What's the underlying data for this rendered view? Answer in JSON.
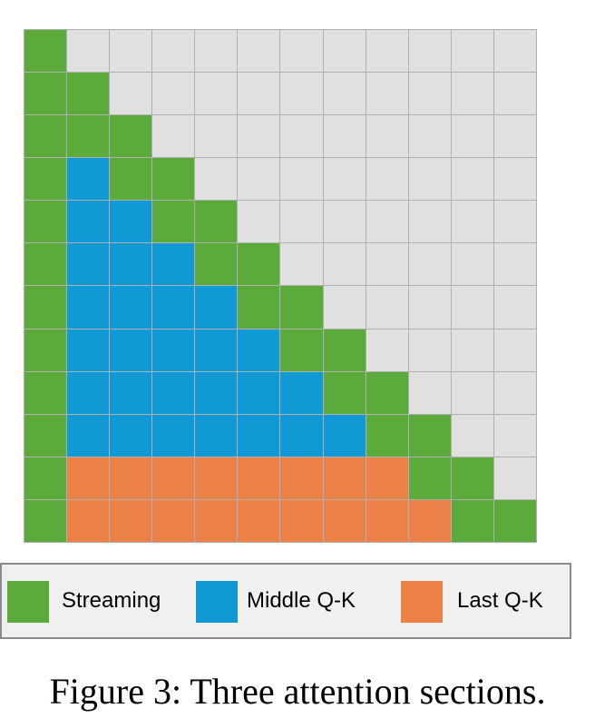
{
  "diagram": {
    "size": 12,
    "colors": {
      "streaming": "#5aaa3c",
      "middle": "#1199d6",
      "last": "#ec8148",
      "masked": "#e0e0e0"
    },
    "rows": [
      "SMMMMMMMMMMM",
      "SSMMMMMMMMMM",
      "SSSMMMMMMMMM",
      "SBSSMMMMMMMM",
      "SBBSSMMMMMMM",
      "SBBBSSMMMMMM",
      "SBBBBSSMMMMM",
      "SBBBBBSSMMMM",
      "SBBBBBBSSMMM",
      "SBBBBBBBSSMM",
      "SLLLLLLLLSSM",
      "SLLLLLLLLLSS"
    ]
  },
  "legend": {
    "items": [
      {
        "key": "streaming",
        "label": "Streaming"
      },
      {
        "key": "middle",
        "label": "Middle Q-K"
      },
      {
        "key": "last",
        "label": "Last Q-K"
      }
    ]
  },
  "caption": "Figure 3: Three attention sections."
}
